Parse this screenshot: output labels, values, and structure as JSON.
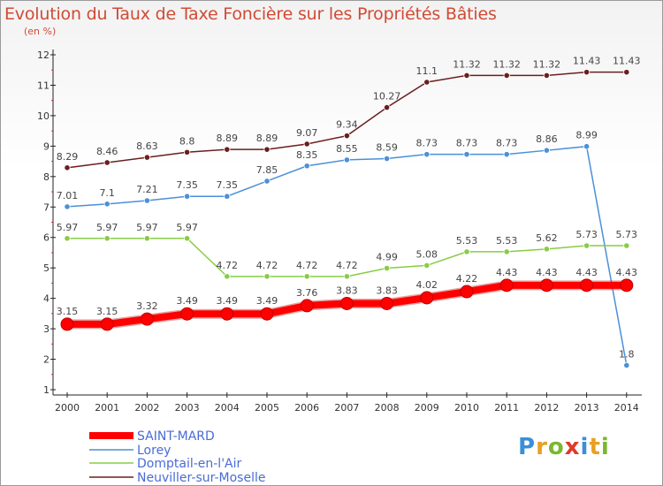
{
  "title": "Evolution du Taux de Taxe Foncière sur les Propriétés Bâties",
  "subtitle": "(en %)",
  "logo": {
    "text": "Proxiti",
    "letters": [
      "P",
      "r",
      "o",
      "x",
      "i",
      "t",
      "i"
    ],
    "colors": [
      "#3a8fd9",
      "#e8a020",
      "#7ab82e",
      "#e03a2a",
      "#3a8fd9",
      "#e8a020",
      "#7ab82e"
    ]
  },
  "chart_data": {
    "type": "line",
    "x": [
      "2000",
      "2001",
      "2002",
      "2003",
      "2004",
      "2005",
      "2006",
      "2007",
      "2008",
      "2009",
      "2010",
      "2011",
      "2012",
      "2013",
      "2014"
    ],
    "ylim": [
      1,
      12
    ],
    "yticks": [
      "1",
      "2",
      "3",
      "4",
      "5",
      "6",
      "7",
      "8",
      "9",
      "10",
      "11",
      "12"
    ],
    "grid": false,
    "legend_position": "bottom-left",
    "series": [
      {
        "name": "SAINT-MARD",
        "color": "#ff0000",
        "emphasis": true,
        "values": [
          3.15,
          3.15,
          3.32,
          3.49,
          3.49,
          3.49,
          3.76,
          3.83,
          3.83,
          4.02,
          4.22,
          4.43,
          4.43,
          4.43,
          4.43
        ],
        "labels": [
          "3.15",
          "3.15",
          "3.32",
          "3.49",
          "3.49",
          "3.49",
          "3.76",
          "3.83",
          "3.83",
          "4.02",
          "4.22",
          "4.43",
          "4.43",
          "4.43",
          "4.43"
        ]
      },
      {
        "name": "Lorey",
        "color": "#4a90d9",
        "values": [
          7.01,
          7.1,
          7.21,
          7.35,
          7.35,
          7.85,
          8.35,
          8.55,
          8.59,
          8.73,
          8.73,
          8.73,
          8.86,
          8.99,
          1.8
        ],
        "labels": [
          "7.01",
          "7.1",
          "7.21",
          "7.35",
          "7.35",
          "7.85",
          "8.35",
          "8.55",
          "8.59",
          "8.73",
          "8.73",
          "8.73",
          "8.86",
          "8.99",
          "1.8"
        ]
      },
      {
        "name": "Domptail-en-l'Air",
        "color": "#88cc44",
        "values": [
          5.97,
          5.97,
          5.97,
          5.97,
          4.72,
          4.72,
          4.72,
          4.72,
          4.99,
          5.08,
          5.53,
          5.53,
          5.62,
          5.73,
          5.73
        ],
        "labels": [
          "5.97",
          "5.97",
          "5.97",
          "5.97",
          "4.72",
          "4.72",
          "4.72",
          "4.72",
          "4.99",
          "5.08",
          "5.53",
          "5.53",
          "5.62",
          "5.73",
          "5.73"
        ]
      },
      {
        "name": "Neuviller-sur-Moselle",
        "color": "#6b1e1e",
        "values": [
          8.29,
          8.46,
          8.63,
          8.8,
          8.89,
          8.89,
          9.07,
          9.34,
          10.27,
          11.1,
          11.32,
          11.32,
          11.32,
          11.43,
          11.43
        ],
        "labels": [
          "8.29",
          "8.46",
          "8.63",
          "8.8",
          "8.89",
          "8.89",
          "9.07",
          "9.34",
          "10.27",
          "11.1",
          "11.32",
          "11.32",
          "11.32",
          "11.43",
          "11.43"
        ]
      }
    ]
  }
}
